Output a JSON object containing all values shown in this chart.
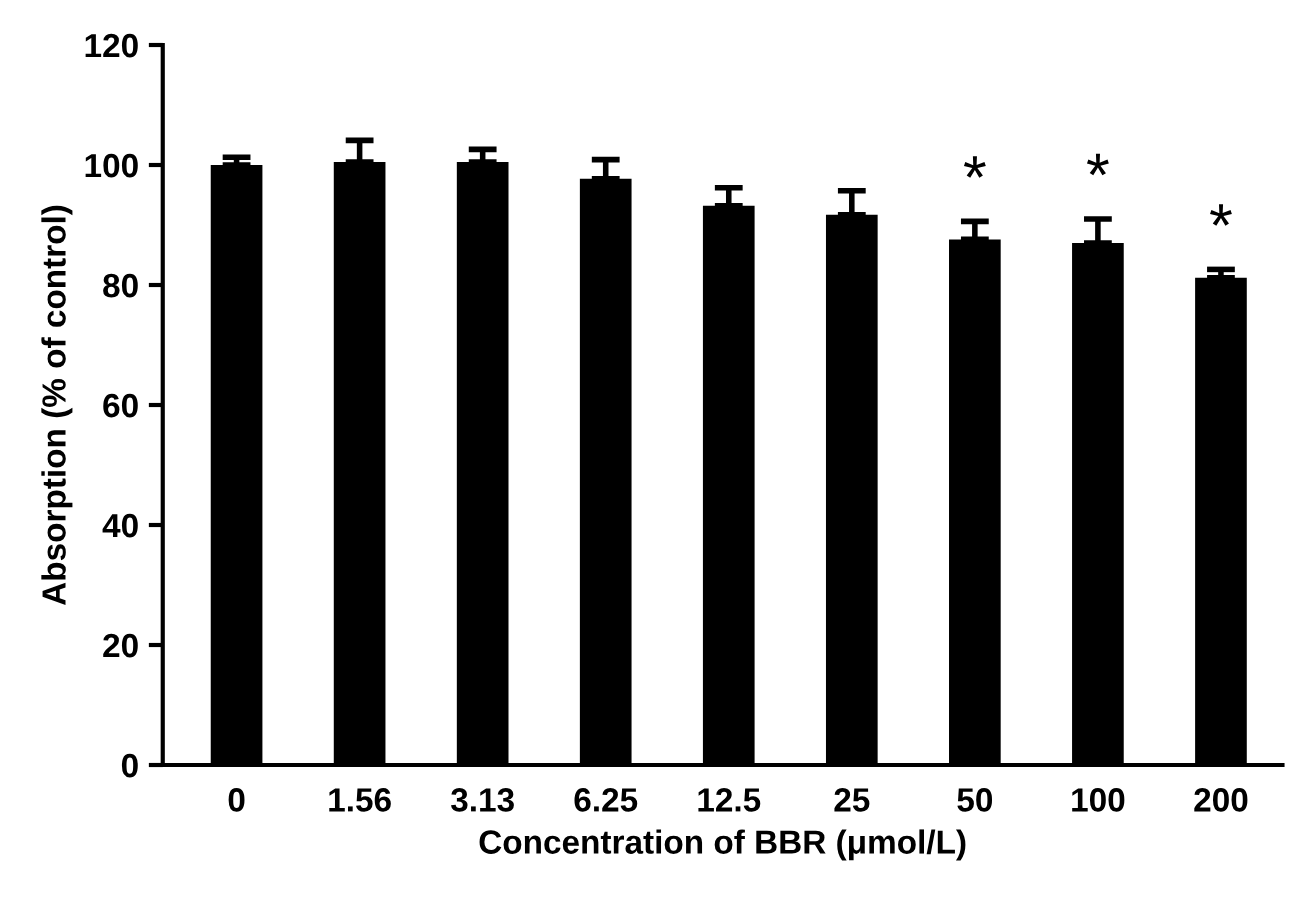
{
  "chart_data": {
    "type": "bar",
    "xlabel": "Concentration of BBR (μmol/L)",
    "ylabel": "Absorption (% of control)",
    "categories": [
      "0",
      "1.56",
      "3.13",
      "6.25",
      "12.5",
      "25",
      "50",
      "100",
      "200"
    ],
    "values": [
      100,
      100.5,
      100.5,
      97.7,
      93.2,
      91.7,
      87.6,
      87,
      81.2
    ],
    "errors": [
      [
        100,
        101.3
      ],
      [
        100.5,
        104.1
      ],
      [
        100.5,
        102.6
      ],
      [
        97.7,
        100.9
      ],
      [
        93.2,
        96.2
      ],
      [
        91.7,
        95.7
      ],
      [
        87.6,
        90.6
      ],
      [
        87,
        91
      ],
      [
        81.2,
        82.6
      ]
    ],
    "color": "#000000",
    "ylim": [
      0,
      120
    ],
    "yticks": [
      0,
      20,
      40,
      60,
      80,
      100,
      120
    ],
    "grid": false,
    "legend": false,
    "annotations": [
      {
        "text": "*",
        "x": "50",
        "y": 90.6
      },
      {
        "text": "*",
        "x": "100",
        "y": 91
      },
      {
        "text": "*",
        "x": "200",
        "y": 82.6
      }
    ]
  }
}
